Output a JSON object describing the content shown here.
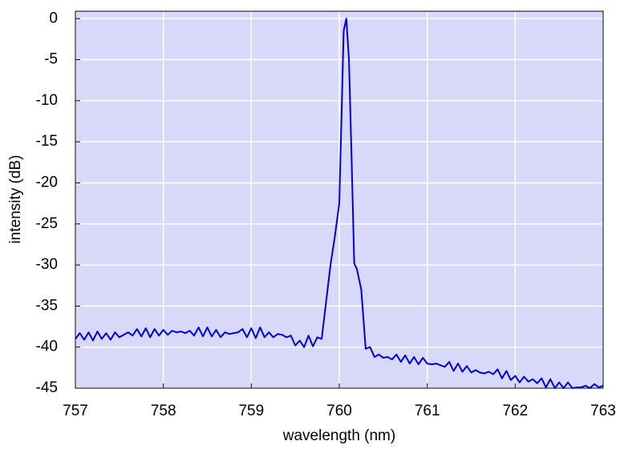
{
  "chart_data": {
    "type": "line",
    "x_label": "wavelength (nm)",
    "y_label": "intensity (dB)",
    "xlim": [
      757,
      763
    ],
    "ylim": [
      -45,
      0.9
    ],
    "xticks": [
      757,
      758,
      759,
      760,
      761,
      762,
      763
    ],
    "yticks": [
      0,
      -5,
      -10,
      -15,
      -20,
      -25,
      -30,
      -35,
      -40,
      -45
    ],
    "grid": true,
    "background": "#d8d8f8",
    "x": [
      757.0,
      757.05,
      757.1,
      757.15,
      757.2,
      757.25,
      757.3,
      757.35,
      757.4,
      757.45,
      757.5,
      757.55,
      757.6,
      757.65,
      757.7,
      757.75,
      757.8,
      757.85,
      757.9,
      757.95,
      758.0,
      758.05,
      758.1,
      758.15,
      758.2,
      758.25,
      758.3,
      758.35,
      758.4,
      758.45,
      758.5,
      758.55,
      758.6,
      758.65,
      758.7,
      758.75,
      758.8,
      758.85,
      758.9,
      758.95,
      759.0,
      759.05,
      759.1,
      759.15,
      759.2,
      759.25,
      759.3,
      759.35,
      759.4,
      759.45,
      759.5,
      759.55,
      759.6,
      759.65,
      759.7,
      759.75,
      759.8,
      759.85,
      759.9,
      759.95,
      760.0,
      760.03,
      760.05,
      760.08,
      760.11,
      760.14,
      760.17,
      760.2,
      760.25,
      760.3,
      760.35,
      760.4,
      760.45,
      760.5,
      760.55,
      760.6,
      760.65,
      760.7,
      760.75,
      760.8,
      760.85,
      760.9,
      760.95,
      761.0,
      761.05,
      761.1,
      761.15,
      761.2,
      761.25,
      761.3,
      761.35,
      761.4,
      761.45,
      761.5,
      761.55,
      761.6,
      761.65,
      761.7,
      761.75,
      761.8,
      761.85,
      761.9,
      761.95,
      762.0,
      762.05,
      762.1,
      762.15,
      762.2,
      762.25,
      762.3,
      762.35,
      762.4,
      762.45,
      762.5,
      762.55,
      762.6,
      762.65,
      762.7,
      762.75,
      762.8,
      762.85,
      762.9,
      762.95,
      763.0
    ],
    "series": [
      {
        "color": "#0000dd",
        "values": [
          -39,
          -38.3,
          -39.1,
          -38.2,
          -39.2,
          -38.1,
          -39.0,
          -38.3,
          -39.1,
          -38.2,
          -38.8,
          -38.5,
          -38.2,
          -38.6,
          -37.8,
          -38.7,
          -37.7,
          -38.8,
          -37.8,
          -38.6,
          -37.9,
          -38.5,
          -38.0,
          -38.2,
          -38.1,
          -38.3,
          -38.0,
          -38.6,
          -37.6,
          -38.7,
          -37.6,
          -38.7,
          -37.9,
          -38.8,
          -38.2,
          -38.4,
          -38.3,
          -38.2,
          -37.8,
          -38.8,
          -37.7,
          -38.9,
          -37.6,
          -38.8,
          -38.2,
          -38.8,
          -38.4,
          -38.5,
          -38.8,
          -38.6,
          -39.8,
          -39.2,
          -40.0,
          -38.6,
          -39.9,
          -38.8,
          -39.0,
          -34.5,
          -30,
          -26.5,
          -22.5,
          -10,
          -1.5,
          0,
          -5,
          -17,
          -29.8,
          -30.5,
          -33,
          -40.2,
          -40.0,
          -41.2,
          -40.9,
          -41.3,
          -41.2,
          -41.5,
          -40.9,
          -41.8,
          -41.0,
          -42.0,
          -41.2,
          -42.1,
          -41.3,
          -42.0,
          -42.1,
          -42.0,
          -42.2,
          -42.4,
          -41.8,
          -42.9,
          -42.0,
          -43.0,
          -42.3,
          -43.1,
          -42.8,
          -43.1,
          -43.2,
          -43.0,
          -43.3,
          -42.7,
          -43.8,
          -42.9,
          -44.0,
          -43.5,
          -44.3,
          -43.6,
          -44.2,
          -43.9,
          -44.4,
          -43.8,
          -44.9,
          -43.9,
          -45.0,
          -44.3,
          -45.0,
          -44.3,
          -45.0,
          -44.9,
          -44.9,
          -44.7,
          -45,
          -44.5,
          -44.9,
          -44.7
        ]
      }
    ]
  }
}
